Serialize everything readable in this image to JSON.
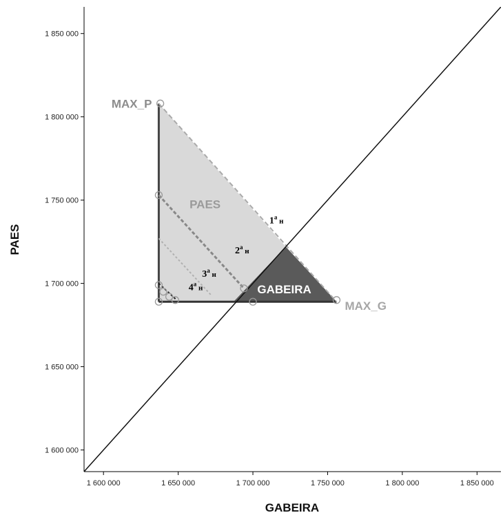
{
  "chart_data": {
    "type": "scatter",
    "xlabel": "GABEIRA",
    "ylabel": "PAES",
    "xlim": [
      1587000,
      1866000
    ],
    "ylim": [
      1587000,
      1866000
    ],
    "x_ticks": [
      {
        "value": 1600000,
        "label": "1 600 000"
      },
      {
        "value": 1650000,
        "label": "1 650 000"
      },
      {
        "value": 1700000,
        "label": "1 700 000"
      },
      {
        "value": 1750000,
        "label": "1 750 000"
      },
      {
        "value": 1800000,
        "label": "1 800 000"
      },
      {
        "value": 1850000,
        "label": "1 850 000"
      }
    ],
    "y_ticks": [
      {
        "value": 1600000,
        "label": "1 600 000"
      },
      {
        "value": 1650000,
        "label": "1 650 000"
      },
      {
        "value": 1700000,
        "label": "1 700 000"
      },
      {
        "value": 1750000,
        "label": "1 750 000"
      },
      {
        "value": 1800000,
        "label": "1 800 000"
      },
      {
        "value": 1850000,
        "label": "1 850 000"
      }
    ],
    "grid": false,
    "reference_line": {
      "from": [
        1587000,
        1587000
      ],
      "to": [
        1866000,
        1866000
      ]
    },
    "regions": [
      {
        "name": "PAES",
        "color": "#d9d9d9",
        "polygon": [
          [
            1637000,
            1808000
          ],
          [
            1637000,
            1689000
          ],
          [
            1687000,
            1689000
          ],
          [
            1722000,
            1722000
          ]
        ]
      },
      {
        "name": "GABEIRA",
        "color": "#5a5a5a",
        "polygon": [
          [
            1687000,
            1689000
          ],
          [
            1756000,
            1689000
          ],
          [
            1722000,
            1722000
          ]
        ]
      }
    ],
    "boundary_lines": [
      {
        "from": [
          1637000,
          1808000
        ],
        "to": [
          1637000,
          1689000
        ],
        "color": "#444444",
        "width": 3,
        "dash": ""
      },
      {
        "from": [
          1637000,
          1689000
        ],
        "to": [
          1756000,
          1689000
        ],
        "color": "#333333",
        "width": 3,
        "dash": ""
      },
      {
        "from": [
          1637000,
          1808000
        ],
        "to": [
          1756000,
          1689000
        ],
        "color": "#aaaaaa",
        "width": 2,
        "dash": "7,4"
      },
      {
        "from": [
          1637000,
          1753000
        ],
        "to": [
          1694000,
          1697000
        ],
        "color": "#888888",
        "width": 3,
        "dash": "5,3"
      },
      {
        "from": [
          1637000,
          1727000
        ],
        "to": [
          1672000,
          1693000
        ],
        "color": "#b0b0b0",
        "width": 2,
        "dash": "3,3"
      },
      {
        "from": [
          1637000,
          1700000
        ],
        "to": [
          1649000,
          1690000
        ],
        "color": "#222222",
        "width": 2,
        "dash": "3,3"
      }
    ],
    "points": [
      {
        "x": 1638000,
        "y": 1808000
      },
      {
        "x": 1637000,
        "y": 1753000
      },
      {
        "x": 1637000,
        "y": 1699000
      },
      {
        "x": 1640000,
        "y": 1695000
      },
      {
        "x": 1644000,
        "y": 1692000
      },
      {
        "x": 1648000,
        "y": 1690000
      },
      {
        "x": 1637000,
        "y": 1689000
      },
      {
        "x": 1694000,
        "y": 1697000
      },
      {
        "x": 1700000,
        "y": 1689000
      },
      {
        "x": 1756000,
        "y": 1690000
      }
    ],
    "annotations": [
      {
        "text": "MAX_P",
        "x": 1637000,
        "y": 1808000,
        "color": "#8c8c8c",
        "anchor": "end",
        "dx": -10,
        "dy": 6
      },
      {
        "text": "MAX_G",
        "x": 1756000,
        "y": 1689000,
        "color": "#a6a6a6",
        "anchor": "start",
        "dx": 12,
        "dy": 12
      },
      {
        "text": "PAES",
        "x": 1668000,
        "y": 1745000,
        "color": "#9a9a9a",
        "anchor": "middle",
        "dx": 0,
        "dy": 0
      },
      {
        "text": "GABEIRA",
        "x": 1721000,
        "y": 1694000,
        "color": "#ffffff",
        "anchor": "middle",
        "dx": 0,
        "dy": 0
      }
    ],
    "round_labels": [
      {
        "n": "1",
        "sup": "a",
        "suffix": " н",
        "x": 1711000,
        "y": 1736000
      },
      {
        "n": "2",
        "sup": "a",
        "suffix": " н",
        "x": 1688000,
        "y": 1718000
      },
      {
        "n": "3",
        "sup": "a",
        "suffix": " н",
        "x": 1666000,
        "y": 1704000
      },
      {
        "n": "4",
        "sup": "a",
        "suffix": " н",
        "x": 1657000,
        "y": 1696000
      }
    ]
  }
}
